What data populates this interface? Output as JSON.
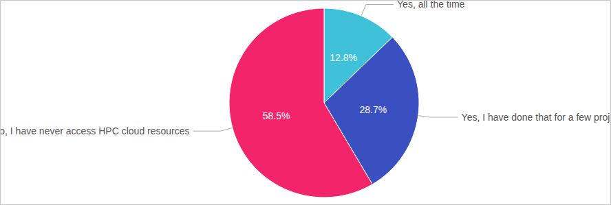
{
  "chart_data": {
    "type": "pie",
    "categories": [
      "Yes, all the time",
      "Yes, I have done that for a few projects",
      "No, I have never access HPC cloud resources"
    ],
    "values": [
      12.8,
      28.7,
      58.5
    ],
    "value_labels": [
      "12.8%",
      "28.7%",
      "58.5%"
    ],
    "colors": [
      "#3fc1d9",
      "#3a4fc0",
      "#f2256a"
    ],
    "data_labels": true
  }
}
